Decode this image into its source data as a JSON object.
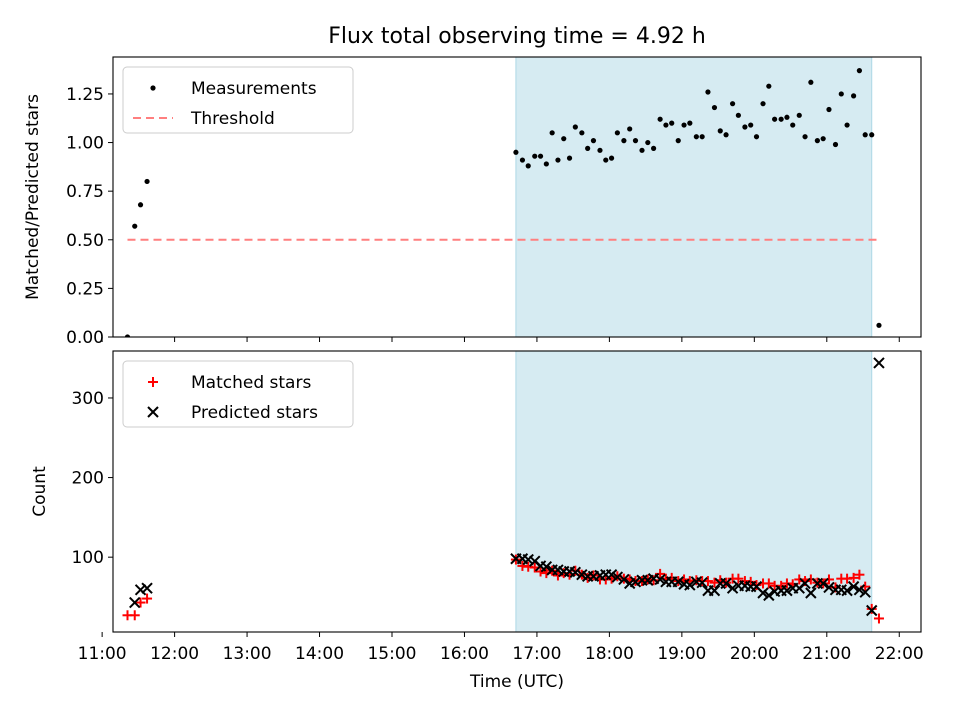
{
  "title": "Flux total observing time = 4.92 h",
  "colors": {
    "shade": "#add8e6",
    "threshold": "#ff7f7f",
    "matched": "#ff0000",
    "predicted": "#000000",
    "measurement": "#000000"
  },
  "chart_data": [
    {
      "type": "scatter",
      "ylabel": "Matched/Predicted stars",
      "ylim": [
        0,
        1.44
      ],
      "xlim": [
        11.15,
        22.3
      ],
      "yticks": [
        {
          "value": 0.0,
          "label": "0.00"
        },
        {
          "value": 0.25,
          "label": "0.25"
        },
        {
          "value": 0.5,
          "label": "0.50"
        },
        {
          "value": 0.75,
          "label": "0.75"
        },
        {
          "value": 1.0,
          "label": "1.00"
        },
        {
          "value": 1.25,
          "label": "1.25"
        }
      ],
      "legend": {
        "position": "upper-left",
        "entries": [
          "Measurements",
          "Threshold"
        ]
      },
      "shaded_span": [
        16.71,
        21.62
      ],
      "threshold": {
        "name": "Threshold",
        "value": 0.5,
        "x_range": [
          11.35,
          21.72
        ]
      },
      "series": [
        {
          "name": "Measurements",
          "points": [
            [
              11.35,
              0.0
            ],
            [
              11.45,
              0.57
            ],
            [
              11.53,
              0.68
            ],
            [
              11.62,
              0.8
            ],
            [
              16.71,
              0.95
            ],
            [
              16.8,
              0.91
            ],
            [
              16.88,
              0.88
            ],
            [
              16.97,
              0.93
            ],
            [
              17.05,
              0.93
            ],
            [
              17.13,
              0.89
            ],
            [
              17.21,
              1.05
            ],
            [
              17.29,
              0.91
            ],
            [
              17.37,
              1.02
            ],
            [
              17.45,
              0.92
            ],
            [
              17.53,
              1.08
            ],
            [
              17.62,
              1.05
            ],
            [
              17.7,
              0.97
            ],
            [
              17.78,
              1.01
            ],
            [
              17.87,
              0.96
            ],
            [
              17.95,
              0.91
            ],
            [
              18.03,
              0.92
            ],
            [
              18.11,
              1.05
            ],
            [
              18.2,
              1.01
            ],
            [
              18.28,
              1.07
            ],
            [
              18.36,
              1.01
            ],
            [
              18.45,
              0.96
            ],
            [
              18.53,
              1.0
            ],
            [
              18.61,
              0.97
            ],
            [
              18.7,
              1.12
            ],
            [
              18.78,
              1.09
            ],
            [
              18.86,
              1.1
            ],
            [
              18.95,
              1.01
            ],
            [
              19.03,
              1.09
            ],
            [
              19.11,
              1.1
            ],
            [
              19.2,
              1.03
            ],
            [
              19.28,
              1.03
            ],
            [
              19.36,
              1.26
            ],
            [
              19.45,
              1.18
            ],
            [
              19.53,
              1.06
            ],
            [
              19.61,
              1.04
            ],
            [
              19.7,
              1.2
            ],
            [
              19.78,
              1.14
            ],
            [
              19.87,
              1.08
            ],
            [
              19.95,
              1.09
            ],
            [
              20.03,
              1.03
            ],
            [
              20.12,
              1.2
            ],
            [
              20.2,
              1.29
            ],
            [
              20.28,
              1.12
            ],
            [
              20.37,
              1.12
            ],
            [
              20.45,
              1.13
            ],
            [
              20.53,
              1.09
            ],
            [
              20.62,
              1.14
            ],
            [
              20.7,
              1.03
            ],
            [
              20.78,
              1.31
            ],
            [
              20.87,
              1.01
            ],
            [
              20.95,
              1.02
            ],
            [
              21.03,
              1.17
            ],
            [
              21.12,
              0.99
            ],
            [
              21.2,
              1.25
            ],
            [
              21.28,
              1.09
            ],
            [
              21.37,
              1.24
            ],
            [
              21.45,
              1.37
            ],
            [
              21.53,
              1.04
            ],
            [
              21.62,
              1.04
            ],
            [
              21.72,
              0.06
            ]
          ]
        }
      ]
    },
    {
      "type": "scatter",
      "ylabel": "Count",
      "xlabel": "Time (UTC)",
      "ylim": [
        6,
        359
      ],
      "xlim": [
        11.15,
        22.3
      ],
      "yticks": [
        {
          "value": 100,
          "label": "100"
        },
        {
          "value": 200,
          "label": "200"
        },
        {
          "value": 300,
          "label": "300"
        }
      ],
      "xticks": [
        {
          "value": 11,
          "label": "11:00"
        },
        {
          "value": 12,
          "label": "12:00"
        },
        {
          "value": 13,
          "label": "13:00"
        },
        {
          "value": 14,
          "label": "14:00"
        },
        {
          "value": 15,
          "label": "15:00"
        },
        {
          "value": 16,
          "label": "16:00"
        },
        {
          "value": 17,
          "label": "17:00"
        },
        {
          "value": 18,
          "label": "18:00"
        },
        {
          "value": 19,
          "label": "19:00"
        },
        {
          "value": 20,
          "label": "20:00"
        },
        {
          "value": 21,
          "label": "21:00"
        },
        {
          "value": 22,
          "label": "22:00"
        }
      ],
      "legend": {
        "position": "upper-left",
        "entries": [
          "Matched stars",
          "Predicted stars"
        ]
      },
      "shaded_span": [
        16.71,
        21.62
      ],
      "series": [
        {
          "name": "Matched stars",
          "marker": "plus",
          "points": [
            [
              11.35,
              27
            ],
            [
              11.45,
              27
            ],
            [
              11.53,
              43
            ],
            [
              11.62,
              48
            ],
            [
              16.71,
              97
            ],
            [
              16.8,
              89
            ],
            [
              16.88,
              88
            ],
            [
              16.97,
              87
            ],
            [
              17.05,
              82
            ],
            [
              17.13,
              80
            ],
            [
              17.21,
              83
            ],
            [
              17.29,
              77
            ],
            [
              17.37,
              80
            ],
            [
              17.45,
              78
            ],
            [
              17.53,
              83
            ],
            [
              17.62,
              78
            ],
            [
              17.7,
              74
            ],
            [
              17.78,
              77
            ],
            [
              17.87,
              72
            ],
            [
              17.95,
              72
            ],
            [
              18.03,
              73
            ],
            [
              18.11,
              76
            ],
            [
              18.2,
              73
            ],
            [
              18.28,
              72
            ],
            [
              18.36,
              70
            ],
            [
              18.45,
              70
            ],
            [
              18.53,
              72
            ],
            [
              18.61,
              71
            ],
            [
              18.7,
              79
            ],
            [
              18.78,
              73
            ],
            [
              18.86,
              74
            ],
            [
              18.95,
              70
            ],
            [
              19.03,
              72
            ],
            [
              19.11,
              70
            ],
            [
              19.2,
              71
            ],
            [
              19.28,
              70
            ],
            [
              19.36,
              70
            ],
            [
              19.45,
              68
            ],
            [
              19.53,
              71
            ],
            [
              19.61,
              68
            ],
            [
              19.7,
              73
            ],
            [
              19.78,
              73
            ],
            [
              19.87,
              70
            ],
            [
              19.95,
              69
            ],
            [
              20.03,
              65
            ],
            [
              20.12,
              67
            ],
            [
              20.2,
              67
            ],
            [
              20.28,
              64
            ],
            [
              20.37,
              64
            ],
            [
              20.45,
              67
            ],
            [
              20.53,
              66
            ],
            [
              20.62,
              72
            ],
            [
              20.7,
              70
            ],
            [
              20.78,
              72
            ],
            [
              20.87,
              68
            ],
            [
              20.95,
              67
            ],
            [
              21.03,
              72
            ],
            [
              21.12,
              62
            ],
            [
              21.2,
              73
            ],
            [
              21.28,
              73
            ],
            [
              21.37,
              74
            ],
            [
              21.45,
              78
            ],
            [
              21.53,
              63
            ],
            [
              21.62,
              35
            ],
            [
              21.72,
              23
            ]
          ]
        },
        {
          "name": "Predicted stars",
          "marker": "x",
          "points": [
            [
              11.45,
              43
            ],
            [
              11.53,
              59
            ],
            [
              11.62,
              61
            ],
            [
              16.71,
              98
            ],
            [
              16.8,
              98
            ],
            [
              16.88,
              97
            ],
            [
              16.97,
              95
            ],
            [
              17.05,
              89
            ],
            [
              17.13,
              88
            ],
            [
              17.21,
              84
            ],
            [
              17.29,
              84
            ],
            [
              17.37,
              82
            ],
            [
              17.45,
              82
            ],
            [
              17.53,
              81
            ],
            [
              17.62,
              78
            ],
            [
              17.7,
              76
            ],
            [
              17.78,
              76
            ],
            [
              17.87,
              77
            ],
            [
              17.95,
              78
            ],
            [
              18.03,
              78
            ],
            [
              18.11,
              75
            ],
            [
              18.2,
              72
            ],
            [
              18.28,
              67
            ],
            [
              18.36,
              69
            ],
            [
              18.45,
              71
            ],
            [
              18.53,
              71
            ],
            [
              18.61,
              73
            ],
            [
              18.7,
              72
            ],
            [
              18.78,
              69
            ],
            [
              18.86,
              69
            ],
            [
              18.95,
              69
            ],
            [
              19.03,
              66
            ],
            [
              19.11,
              65
            ],
            [
              19.2,
              69
            ],
            [
              19.28,
              68
            ],
            [
              19.36,
              58
            ],
            [
              19.45,
              58
            ],
            [
              19.53,
              67
            ],
            [
              19.61,
              67
            ],
            [
              19.7,
              61
            ],
            [
              19.78,
              64
            ],
            [
              19.87,
              64
            ],
            [
              19.95,
              63
            ],
            [
              20.03,
              63
            ],
            [
              20.12,
              55
            ],
            [
              20.2,
              52
            ],
            [
              20.28,
              57
            ],
            [
              20.37,
              58
            ],
            [
              20.45,
              58
            ],
            [
              20.53,
              61
            ],
            [
              20.62,
              61
            ],
            [
              20.7,
              67
            ],
            [
              20.78,
              55
            ],
            [
              20.87,
              67
            ],
            [
              20.95,
              67
            ],
            [
              21.03,
              62
            ],
            [
              21.12,
              59
            ],
            [
              21.2,
              59
            ],
            [
              21.28,
              58
            ],
            [
              21.37,
              63
            ],
            [
              21.45,
              59
            ],
            [
              21.53,
              56
            ],
            [
              21.62,
              33
            ],
            [
              21.72,
              344
            ]
          ]
        }
      ]
    }
  ]
}
